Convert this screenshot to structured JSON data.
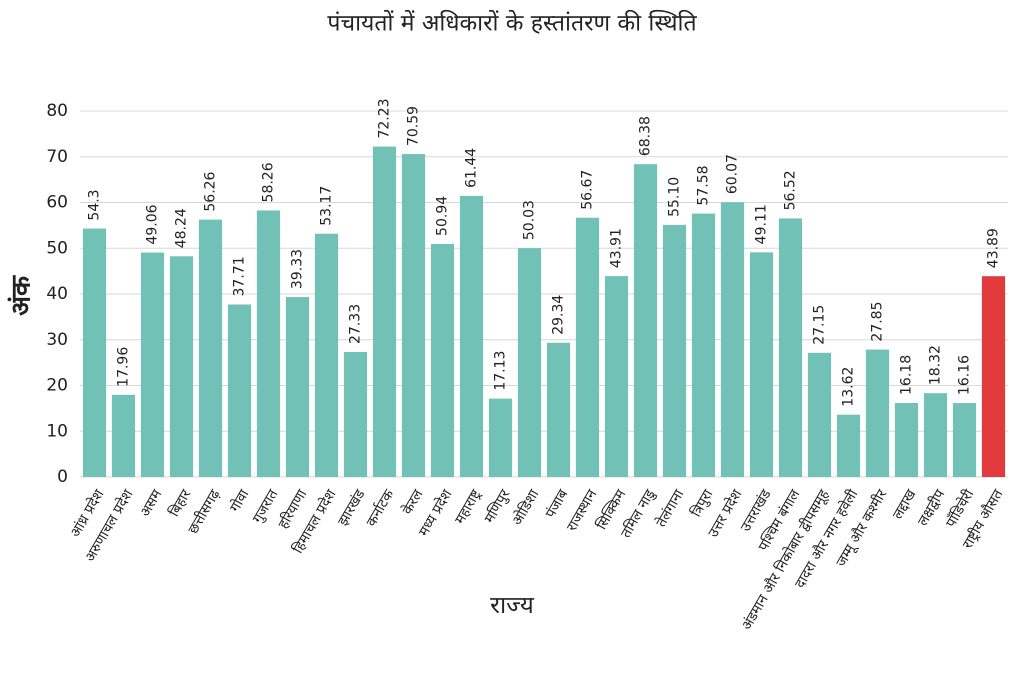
{
  "chart_data": {
    "type": "bar",
    "title": "पंचायतों में अधिकारों के हस्तांतरण की स्थिति",
    "x_label": "राज्य",
    "y_label": "अंक",
    "categories": [
      "आंध्र प्रदेश",
      "अरुणाचल प्रदेश",
      "असम",
      "बिहार",
      "छत्तीसगढ़",
      "गोवा",
      "गुजरात",
      "हरियाणा",
      "हिमाचल प्रदेश",
      "झारखंड",
      "कर्नाटक",
      "केरल",
      "मध्य प्रदेश",
      "महाराष्ट्र",
      "मणिपुर",
      "ओडिशा",
      "पंजाब",
      "राजस्थान",
      "सिक्किम",
      "तमिल नाडु",
      "तेलंगाना",
      "त्रिपुरा",
      "उत्तर प्रदेश",
      "उत्तराखंड",
      "पश्चिम बंगाल",
      "अंडमान और निकोबार द्वीपसमूह",
      "दादरा और नगर हवेली",
      "जम्मू और कश्मीर",
      "लद्दाख",
      "लक्षद्वीप",
      "पॉंडिचेरी",
      "राष्ट्रीय औसत"
    ],
    "values": [
      54.3,
      17.96,
      49.06,
      48.24,
      56.26,
      37.71,
      58.26,
      39.33,
      53.17,
      27.33,
      72.23,
      70.59,
      50.94,
      61.44,
      17.13,
      50.03,
      29.34,
      56.67,
      43.91,
      68.38,
      55.1,
      57.58,
      60.07,
      49.11,
      56.52,
      27.15,
      13.62,
      27.85,
      16.18,
      18.32,
      16.16,
      43.89
    ],
    "value_labels": [
      "54.3",
      "17.96",
      "49.06",
      "48.24",
      "56.26",
      "37.71",
      "58.26",
      "39.33",
      "53.17",
      "27.33",
      "72.23",
      "70.59",
      "50.94",
      "61.44",
      "17.13",
      "50.03",
      "29.34",
      "56.67",
      "43.91",
      "68.38",
      "55.10",
      "57.58",
      "60.07",
      "49.11",
      "56.52",
      "27.15",
      "13.62",
      "27.85",
      "16.18",
      "18.32",
      "16.16",
      "43.89"
    ],
    "colors": [
      "#72c1b7",
      "#72c1b7",
      "#72c1b7",
      "#72c1b7",
      "#72c1b7",
      "#72c1b7",
      "#72c1b7",
      "#72c1b7",
      "#72c1b7",
      "#72c1b7",
      "#72c1b7",
      "#72c1b7",
      "#72c1b7",
      "#72c1b7",
      "#72c1b7",
      "#72c1b7",
      "#72c1b7",
      "#72c1b7",
      "#72c1b7",
      "#72c1b7",
      "#72c1b7",
      "#72c1b7",
      "#72c1b7",
      "#72c1b7",
      "#72c1b7",
      "#72c1b7",
      "#72c1b7",
      "#72c1b7",
      "#72c1b7",
      "#72c1b7",
      "#72c1b7",
      "#e03a3c"
    ],
    "ylim": [
      0,
      80
    ],
    "yticks": [
      0,
      10,
      20,
      30,
      40,
      50,
      60,
      70,
      80
    ],
    "grid": true
  }
}
